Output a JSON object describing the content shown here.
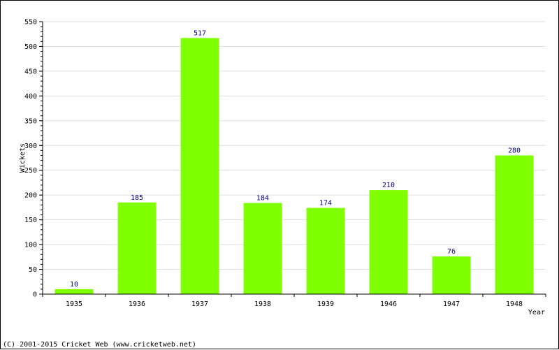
{
  "chart_data": {
    "type": "bar",
    "categories": [
      "1935",
      "1936",
      "1937",
      "1938",
      "1939",
      "1946",
      "1947",
      "1948"
    ],
    "values": [
      10,
      185,
      517,
      184,
      174,
      210,
      76,
      280
    ],
    "value_labels": [
      "10",
      "185",
      "517",
      "184",
      "174",
      "210",
      "76",
      "280"
    ],
    "xlabel": "Year",
    "ylabel": "Wickets",
    "ylim": [
      0,
      550
    ],
    "yticks": [
      "0",
      "50",
      "100",
      "150",
      "200",
      "250",
      "300",
      "350",
      "400",
      "450",
      "500",
      "550"
    ],
    "ytick_values": [
      0,
      50,
      100,
      150,
      200,
      250,
      300,
      350,
      400,
      450,
      500,
      550
    ],
    "grid": true,
    "bar_color": "#7fff00",
    "grid_color": "#dddddd",
    "label_color": "#000080"
  },
  "footer": {
    "copyright": "(C) 2001-2015 Cricket Web (www.cricketweb.net)"
  }
}
